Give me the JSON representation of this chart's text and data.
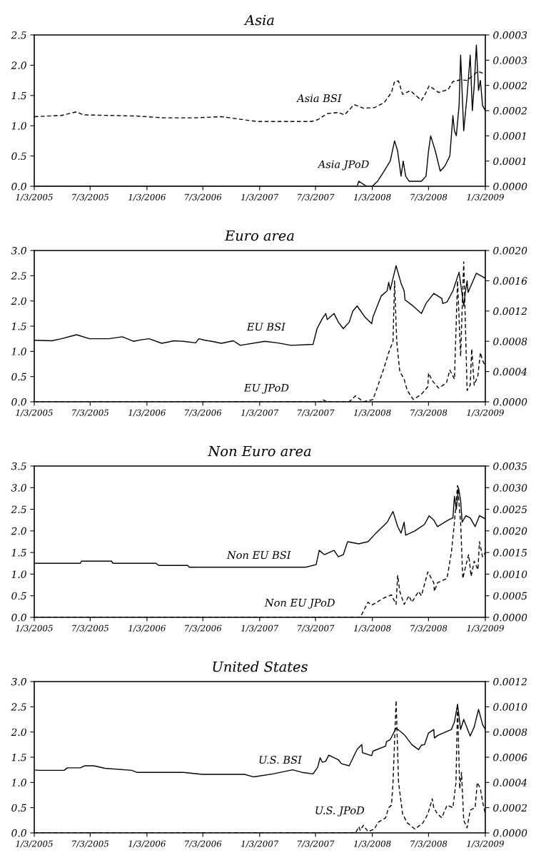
{
  "chart_data": [
    {
      "type": "line",
      "title": "Asia",
      "xlim": [
        "2005-01-03",
        "2009-01-03"
      ],
      "xticks": [
        {
          "value": "2005-01-03",
          "label": "1/3/2005"
        },
        {
          "value": "2005-07-03",
          "label": "7/3/2005"
        },
        {
          "value": "2006-01-03",
          "label": "1/3/2006"
        },
        {
          "value": "2006-07-03",
          "label": "7/3/2006"
        },
        {
          "value": "2007-01-03",
          "label": "1/3/2007"
        },
        {
          "value": "2007-07-03",
          "label": "7/3/2007"
        },
        {
          "value": "2008-01-03",
          "label": "1/3/2008"
        },
        {
          "value": "2008-07-03",
          "label": "7/3/2008"
        },
        {
          "value": "2009-01-03",
          "label": "1/3/2009"
        }
      ],
      "ylim": [
        0,
        2.5
      ],
      "yticks": [
        {
          "value": 0,
          "label": "0.0"
        },
        {
          "value": 0.5,
          "label": "0.5"
        },
        {
          "value": 1,
          "label": "1.0"
        },
        {
          "value": 1.5,
          "label": "1.5"
        },
        {
          "value": 2,
          "label": "2.0"
        },
        {
          "value": 2.5,
          "label": "2.5"
        }
      ],
      "y2lim": [
        0,
        0.0003
      ],
      "y2ticks": [
        {
          "value": 0,
          "label": "0.0000"
        },
        {
          "value": 5e-05,
          "label": "0.0001"
        },
        {
          "value": 0.0001,
          "label": "0.0001"
        },
        {
          "value": 0.00015,
          "label": "0.0002"
        },
        {
          "value": 0.0002,
          "label": "0.0002"
        },
        {
          "value": 0.00025,
          "label": "0.0003"
        },
        {
          "value": 0.0003,
          "label": "0.0003"
        }
      ],
      "series": [
        {
          "name": "Asia BSI",
          "color": "#000000",
          "line_style": "dashed",
          "x": [
            "2005-01-03",
            "2005-04-01",
            "2005-05-20",
            "2005-06-10",
            "2005-12-01",
            "2006-03-01",
            "2006-06-01",
            "2006-09-01",
            "2006-12-25",
            "2007-06-20",
            "2007-07-10",
            "2007-08-10",
            "2007-09-15",
            "2007-10-05",
            "2007-11-05",
            "2007-12-05",
            "2008-01-10",
            "2008-02-10",
            "2008-03-05",
            "2008-03-15",
            "2008-03-28",
            "2008-04-10",
            "2008-05-05",
            "2008-06-10",
            "2008-06-25",
            "2008-07-05",
            "2008-08-05",
            "2008-09-05",
            "2008-09-20",
            "2008-10-15",
            "2008-11-05",
            "2008-12-10",
            "2009-01-03"
          ],
          "values": [
            1.15,
            1.17,
            1.23,
            1.18,
            1.16,
            1.13,
            1.13,
            1.15,
            1.07,
            1.07,
            1.1,
            1.2,
            1.22,
            1.18,
            1.35,
            1.29,
            1.3,
            1.38,
            1.55,
            1.73,
            1.74,
            1.52,
            1.58,
            1.42,
            1.55,
            1.66,
            1.55,
            1.6,
            1.73,
            1.76,
            1.75,
            1.9,
            1.85
          ]
        },
        {
          "name": "Asia JPoD",
          "color": "#000000",
          "line_style": "solid",
          "axis": "y2",
          "x": [
            "2005-01-03",
            "2007-11-15",
            "2007-11-20",
            "2007-12-15",
            "2008-01-03",
            "2008-01-20",
            "2008-02-10",
            "2008-03-01",
            "2008-03-15",
            "2008-03-25",
            "2008-04-05",
            "2008-04-12",
            "2008-04-20",
            "2008-05-01",
            "2008-06-10",
            "2008-06-25",
            "2008-07-03",
            "2008-07-10",
            "2008-07-25",
            "2008-08-10",
            "2008-08-25",
            "2008-09-10",
            "2008-09-20",
            "2008-09-25",
            "2008-10-01",
            "2008-10-10",
            "2008-10-15",
            "2008-10-25",
            "2008-11-05",
            "2008-11-15",
            "2008-11-22",
            "2008-11-28",
            "2008-12-05",
            "2008-12-12",
            "2008-12-18",
            "2008-12-25",
            "2009-01-03"
          ],
          "values": [
            0,
            0,
            1e-05,
            0,
            0,
            1e-05,
            3e-05,
            5e-05,
            9e-05,
            7e-05,
            2e-05,
            5e-05,
            2e-05,
            1e-05,
            1e-05,
            2e-05,
            7e-05,
            0.0001,
            7e-05,
            3e-05,
            4e-05,
            6e-05,
            0.00014,
            0.00011,
            0.0001,
            0.00016,
            0.00026,
            0.00011,
            0.00018,
            0.00026,
            0.00015,
            0.0002,
            0.00028,
            0.00019,
            0.00021,
            0.00016,
            0.00015
          ]
        }
      ]
    },
    {
      "type": "line",
      "title": "Euro area",
      "xlim": [
        "2005-01-03",
        "2009-01-03"
      ],
      "xticks": [
        {
          "value": "2005-01-03",
          "label": "1/3/2005"
        },
        {
          "value": "2005-07-03",
          "label": "7/3/2005"
        },
        {
          "value": "2006-01-03",
          "label": "1/3/2006"
        },
        {
          "value": "2006-07-03",
          "label": "7/3/2006"
        },
        {
          "value": "2007-01-03",
          "label": "1/3/2007"
        },
        {
          "value": "2007-07-03",
          "label": "7/3/2007"
        },
        {
          "value": "2008-01-03",
          "label": "1/3/2008"
        },
        {
          "value": "2008-07-03",
          "label": "7/3/2008"
        },
        {
          "value": "2009-01-03",
          "label": "1/3/2009"
        }
      ],
      "ylim": [
        0,
        3
      ],
      "yticks": [
        {
          "value": 0,
          "label": "0.0"
        },
        {
          "value": 0.5,
          "label": "0.5"
        },
        {
          "value": 1,
          "label": "1.0"
        },
        {
          "value": 1.5,
          "label": "1.5"
        },
        {
          "value": 2,
          "label": "2.0"
        },
        {
          "value": 2.5,
          "label": "2.5"
        },
        {
          "value": 3,
          "label": "3.0"
        }
      ],
      "y2lim": [
        0,
        0.002
      ],
      "y2ticks": [
        {
          "value": 0,
          "label": "0.0000"
        },
        {
          "value": 0.0004,
          "label": "0.0004"
        },
        {
          "value": 0.0008,
          "label": "0.0008"
        },
        {
          "value": 0.0012,
          "label": "0.0012"
        },
        {
          "value": 0.0016,
          "label": "0.0016"
        },
        {
          "value": 0.002,
          "label": "0.0020"
        }
      ],
      "series": [
        {
          "name": "EU BSI",
          "color": "#000000",
          "line_style": "solid",
          "x": [
            "2005-01-03",
            "2005-03-01",
            "2005-04-01",
            "2005-05-20",
            "2005-07-01",
            "2005-09-01",
            "2005-10-15",
            "2005-11-20",
            "2005-12-15",
            "2006-01-10",
            "2006-02-20",
            "2006-04-01",
            "2006-05-01",
            "2006-06-10",
            "2006-06-20",
            "2006-07-10",
            "2006-08-01",
            "2006-09-01",
            "2006-10-10",
            "2006-11-01",
            "2007-01-20",
            "2007-03-01",
            "2007-04-15",
            "2007-06-25",
            "2007-07-08",
            "2007-07-25",
            "2007-08-05",
            "2007-08-10",
            "2007-09-01",
            "2007-09-15",
            "2007-10-01",
            "2007-10-20",
            "2007-11-01",
            "2007-11-15",
            "2007-12-10",
            "2008-01-01",
            "2008-01-05",
            "2008-02-01",
            "2008-02-20",
            "2008-02-25",
            "2008-03-01",
            "2008-03-20",
            "2008-04-05",
            "2008-04-15",
            "2008-04-18",
            "2008-05-10",
            "2008-06-10",
            "2008-06-25",
            "2008-07-20",
            "2008-08-15",
            "2008-08-18",
            "2008-09-01",
            "2008-09-20",
            "2008-10-10",
            "2008-10-25",
            "2008-11-01",
            "2008-11-05",
            "2008-11-08",
            "2008-12-05",
            "2009-01-03"
          ],
          "values": [
            1.22,
            1.21,
            1.25,
            1.33,
            1.25,
            1.25,
            1.29,
            1.2,
            1.23,
            1.25,
            1.16,
            1.21,
            1.2,
            1.17,
            1.25,
            1.22,
            1.2,
            1.16,
            1.21,
            1.12,
            1.2,
            1.17,
            1.12,
            1.14,
            1.45,
            1.65,
            1.75,
            1.63,
            1.75,
            1.58,
            1.45,
            1.58,
            1.8,
            1.9,
            1.68,
            1.55,
            1.68,
            2.1,
            2.2,
            2.37,
            2.22,
            2.7,
            2.35,
            2.2,
            2.02,
            1.92,
            1.75,
            1.95,
            2.15,
            2.05,
            1.95,
            1.98,
            2.2,
            2.57,
            1.9,
            2.25,
            2.4,
            2.17,
            2.55,
            2.45
          ]
        },
        {
          "name": "EU JPoD",
          "color": "#000000",
          "line_style": "dashed",
          "axis": "y2",
          "x": [
            "2005-01-03",
            "2007-07-20",
            "2007-07-25",
            "2007-08-10",
            "2007-10-20",
            "2007-11-10",
            "2007-12-05",
            "2008-01-05",
            "2008-01-20",
            "2008-02-10",
            "2008-02-25",
            "2008-03-10",
            "2008-03-15",
            "2008-03-22",
            "2008-04-01",
            "2008-04-15",
            "2008-04-25",
            "2008-05-15",
            "2008-06-10",
            "2008-07-01",
            "2008-07-03",
            "2008-07-15",
            "2008-08-05",
            "2008-08-30",
            "2008-09-10",
            "2008-09-25",
            "2008-10-05",
            "2008-10-15",
            "2008-10-25",
            "2008-10-30",
            "2008-11-05",
            "2008-11-15",
            "2008-11-20",
            "2008-11-28",
            "2008-12-10",
            "2008-12-18",
            "2008-12-25",
            "2009-01-03"
          ],
          "values": [
            0,
            0,
            3e-05,
            0,
            0,
            8e-05,
            0,
            3e-05,
            0.0002,
            0.00045,
            0.00065,
            0.0008,
            0.0016,
            0.0008,
            0.0004,
            0.0003,
            0.00015,
            3e-05,
            0.0001,
            0.0002,
            0.00038,
            0.00028,
            0.00018,
            0.00025,
            0.00042,
            0.0003,
            0.0016,
            0.0006,
            0.00185,
            0.0011,
            0.00015,
            0.00022,
            0.0007,
            0.00022,
            0.00035,
            0.00065,
            0.00055,
            0.00047
          ]
        }
      ]
    },
    {
      "type": "line",
      "title": "Non Euro area",
      "xlim": [
        "2005-01-03",
        "2009-01-03"
      ],
      "xticks": [
        {
          "value": "2005-01-03",
          "label": "1/3/2005"
        },
        {
          "value": "2005-07-03",
          "label": "7/3/2005"
        },
        {
          "value": "2006-01-03",
          "label": "1/3/2006"
        },
        {
          "value": "2006-07-03",
          "label": "7/3/2006"
        },
        {
          "value": "2007-01-03",
          "label": "1/3/2007"
        },
        {
          "value": "2007-07-03",
          "label": "7/3/2007"
        },
        {
          "value": "2008-01-03",
          "label": "1/3/2008"
        },
        {
          "value": "2008-07-03",
          "label": "7/3/2008"
        },
        {
          "value": "2009-01-03",
          "label": "1/3/2009"
        }
      ],
      "ylim": [
        0,
        3.5
      ],
      "yticks": [
        {
          "value": 0,
          "label": "0.0"
        },
        {
          "value": 0.5,
          "label": "0.5"
        },
        {
          "value": 1,
          "label": "1.0"
        },
        {
          "value": 1.5,
          "label": "1.5"
        },
        {
          "value": 2,
          "label": "2.0"
        },
        {
          "value": 2.5,
          "label": "2.5"
        },
        {
          "value": 3,
          "label": "3.0"
        },
        {
          "value": 3.5,
          "label": "3.5"
        }
      ],
      "y2lim": [
        0,
        0.0035
      ],
      "y2ticks": [
        {
          "value": 0,
          "label": "0.0000"
        },
        {
          "value": 0.0005,
          "label": "0.0005"
        },
        {
          "value": 0.001,
          "label": "0.0010"
        },
        {
          "value": 0.0015,
          "label": "0.0015"
        },
        {
          "value": 0.002,
          "label": "0.0020"
        },
        {
          "value": 0.0025,
          "label": "0.0025"
        },
        {
          "value": 0.003,
          "label": "0.0030"
        },
        {
          "value": 0.0035,
          "label": "0.0035"
        }
      ],
      "series": [
        {
          "name": "Non EU BSI",
          "color": "#000000",
          "line_style": "solid",
          "x": [
            "2005-01-03",
            "2005-06-01",
            "2005-06-05",
            "2005-09-10",
            "2005-09-15",
            "2006-02-01",
            "2006-02-10",
            "2006-05-15",
            "2006-05-20",
            "2007-06-01",
            "2007-07-05",
            "2007-07-15",
            "2007-08-01",
            "2007-09-01",
            "2007-09-15",
            "2007-10-01",
            "2007-10-15",
            "2007-11-20",
            "2007-12-20",
            "2008-01-15",
            "2008-02-20",
            "2008-03-10",
            "2008-03-25",
            "2008-04-05",
            "2008-04-15",
            "2008-04-20",
            "2008-05-20",
            "2008-06-20",
            "2008-07-05",
            "2008-07-20",
            "2008-08-01",
            "2008-09-05",
            "2008-09-20",
            "2008-09-25",
            "2008-10-01",
            "2008-10-08",
            "2008-10-15",
            "2008-10-20",
            "2008-11-01",
            "2008-11-15",
            "2008-12-01",
            "2008-12-15",
            "2009-01-03"
          ],
          "values": [
            1.25,
            1.25,
            1.3,
            1.3,
            1.25,
            1.25,
            1.2,
            1.2,
            1.16,
            1.16,
            1.22,
            1.55,
            1.45,
            1.55,
            1.4,
            1.45,
            1.75,
            1.7,
            1.75,
            1.95,
            2.2,
            2.45,
            2.1,
            1.95,
            2.2,
            1.9,
            2.0,
            2.15,
            2.35,
            2.25,
            2.1,
            2.25,
            2.3,
            2.8,
            2.5,
            3.0,
            2.7,
            2.2,
            2.35,
            2.3,
            2.1,
            2.35,
            2.28
          ]
        },
        {
          "name": "Non EU JPoD",
          "color": "#000000",
          "line_style": "dashed",
          "axis": "y2",
          "x": [
            "2005-01-03",
            "2007-11-25",
            "2007-12-20",
            "2008-01-01",
            "2008-02-10",
            "2008-03-05",
            "2008-03-20",
            "2008-03-25",
            "2008-04-01",
            "2008-04-15",
            "2008-05-01",
            "2008-05-10",
            "2008-06-01",
            "2008-06-10",
            "2008-07-01",
            "2008-07-20",
            "2008-07-22",
            "2008-08-01",
            "2008-09-01",
            "2008-09-15",
            "2008-09-25",
            "2008-10-05",
            "2008-10-15",
            "2008-10-22",
            "2008-11-01",
            "2008-11-10",
            "2008-11-18",
            "2008-11-28",
            "2008-12-10",
            "2008-12-15",
            "2008-12-25",
            "2009-01-03"
          ],
          "values": [
            0,
            0,
            0.00035,
            0.00028,
            0.00045,
            0.00052,
            0.0003,
            0.00097,
            0.0006,
            0.0003,
            0.0005,
            0.00035,
            0.0006,
            0.0005,
            0.00105,
            0.0008,
            0.0006,
            0.0008,
            0.0009,
            0.0015,
            0.0022,
            0.00305,
            0.0022,
            0.0009,
            0.0012,
            0.00145,
            0.00095,
            0.0013,
            0.0011,
            0.00175,
            0.0014,
            0.0015
          ]
        }
      ]
    },
    {
      "type": "line",
      "title": "United States",
      "xlim": [
        "2005-01-03",
        "2009-01-03"
      ],
      "xticks": [
        {
          "value": "2005-01-03",
          "label": "1/3/2005"
        },
        {
          "value": "2005-07-03",
          "label": "7/3/2005"
        },
        {
          "value": "2006-01-03",
          "label": "1/3/2006"
        },
        {
          "value": "2006-07-03",
          "label": "7/3/2006"
        },
        {
          "value": "2007-01-03",
          "label": "1/3/2007"
        },
        {
          "value": "2007-07-03",
          "label": "7/3/2007"
        },
        {
          "value": "2008-01-03",
          "label": "1/3/2008"
        },
        {
          "value": "2008-07-03",
          "label": "7/3/2008"
        },
        {
          "value": "2009-01-03",
          "label": "1/3/2009"
        }
      ],
      "ylim": [
        0,
        3
      ],
      "yticks": [
        {
          "value": 0,
          "label": "0.0"
        },
        {
          "value": 0.5,
          "label": "0.5"
        },
        {
          "value": 1,
          "label": "1.0"
        },
        {
          "value": 1.5,
          "label": "1.5"
        },
        {
          "value": 2,
          "label": "2.0"
        },
        {
          "value": 2.5,
          "label": "2.5"
        },
        {
          "value": 3,
          "label": "3.0"
        }
      ],
      "y2lim": [
        0,
        0.0012
      ],
      "y2ticks": [
        {
          "value": 0,
          "label": "0.0000"
        },
        {
          "value": 0.0002,
          "label": "0.0002"
        },
        {
          "value": 0.0004,
          "label": "0.0004"
        },
        {
          "value": 0.0006,
          "label": "0.0006"
        },
        {
          "value": 0.0008,
          "label": "0.0008"
        },
        {
          "value": 0.001,
          "label": "0.0010"
        },
        {
          "value": 0.0012,
          "label": "0.0012"
        }
      ],
      "series": [
        {
          "name": "U.S. BSI",
          "color": "#000000",
          "line_style": "solid",
          "x": [
            "2005-01-03",
            "2005-01-15",
            "2005-04-10",
            "2005-04-20",
            "2005-06-01",
            "2005-06-15",
            "2005-07-15",
            "2005-08-20",
            "2005-11-15",
            "2005-12-01",
            "2006-02-01",
            "2006-05-01",
            "2006-07-01",
            "2006-11-15",
            "2006-12-15",
            "2007-02-15",
            "2007-04-20",
            "2007-05-20",
            "2007-06-25",
            "2007-07-10",
            "2007-07-18",
            "2007-07-25",
            "2007-08-05",
            "2007-08-15",
            "2007-09-15",
            "2007-09-25",
            "2007-10-20",
            "2007-11-15",
            "2007-11-30",
            "2007-12-02",
            "2008-01-01",
            "2008-01-05",
            "2008-02-15",
            "2008-02-18",
            "2008-03-01",
            "2008-03-20",
            "2008-04-15",
            "2008-05-10",
            "2008-06-01",
            "2008-06-10",
            "2008-06-20",
            "2008-07-03",
            "2008-07-20",
            "2008-07-22",
            "2008-08-01",
            "2008-09-15",
            "2008-09-25",
            "2008-10-05",
            "2008-10-15",
            "2008-10-25",
            "2008-11-15",
            "2008-11-28",
            "2008-12-12",
            "2008-12-25",
            "2009-01-03"
          ],
          "values": [
            1.25,
            1.24,
            1.24,
            1.29,
            1.29,
            1.33,
            1.33,
            1.28,
            1.24,
            1.2,
            1.2,
            1.2,
            1.16,
            1.16,
            1.11,
            1.17,
            1.25,
            1.2,
            1.17,
            1.3,
            1.49,
            1.4,
            1.42,
            1.54,
            1.45,
            1.37,
            1.33,
            1.66,
            1.75,
            1.59,
            1.53,
            1.62,
            1.72,
            1.81,
            1.85,
            2.08,
            1.95,
            1.75,
            1.65,
            1.74,
            1.75,
            1.98,
            2.05,
            1.88,
            1.93,
            2.05,
            2.2,
            2.55,
            2.05,
            2.25,
            1.92,
            2.1,
            2.45,
            2.15,
            2.05
          ]
        },
        {
          "name": "U.S. JPoD",
          "color": "#000000",
          "line_style": "dashed",
          "axis": "y2",
          "x": [
            "2005-01-03",
            "2007-11-10",
            "2007-11-20",
            "2007-11-25",
            "2007-12-05",
            "2007-12-20",
            "2008-01-10",
            "2008-01-20",
            "2008-02-15",
            "2008-02-25",
            "2008-03-05",
            "2008-03-10",
            "2008-03-20",
            "2008-03-28",
            "2008-04-10",
            "2008-04-25",
            "2008-05-20",
            "2008-06-15",
            "2008-07-01",
            "2008-07-15",
            "2008-07-20",
            "2008-08-01",
            "2008-08-15",
            "2008-09-01",
            "2008-09-20",
            "2008-09-30",
            "2008-10-05",
            "2008-10-12",
            "2008-10-18",
            "2008-10-25",
            "2008-11-05",
            "2008-11-15",
            "2008-12-01",
            "2008-12-08",
            "2008-12-18",
            "2008-12-25",
            "2009-01-03"
          ],
          "values": [
            0,
            0,
            5e-05,
            2e-05,
            6e-05,
            1e-05,
            3e-05,
            8e-05,
            0.00012,
            0.0002,
            0.00022,
            0.0004,
            0.00105,
            0.0004,
            0.00015,
            8e-05,
            3e-05,
            8e-05,
            0.00015,
            0.00027,
            0.0002,
            0.00015,
            0.00012,
            0.00022,
            0.0002,
            0.0004,
            0.00102,
            0.00035,
            0.00048,
            0.0001,
            4e-05,
            0.00018,
            0.0002,
            0.0004,
            0.00035,
            0.00025,
            0.00015
          ]
        }
      ]
    }
  ]
}
